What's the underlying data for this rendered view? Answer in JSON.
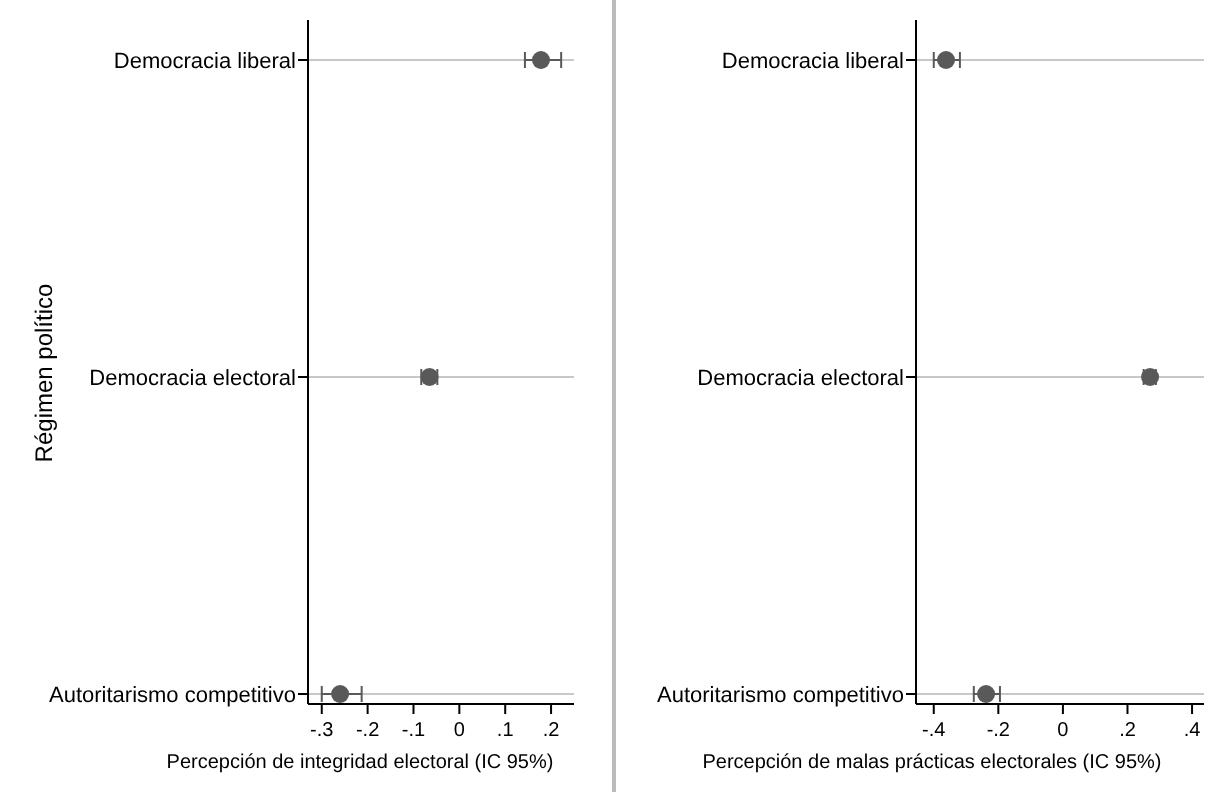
{
  "chart_data": [
    {
      "type": "scatter",
      "orientation": "horizontal",
      "ylabel": "Régimen político",
      "xlabel": "Percepción de integridad electoral (IC 95%)",
      "categories": [
        "Democracia liberal",
        "Democracia electoral",
        "Autoritarismo  competitivo"
      ],
      "values": [
        0.178,
        -0.065,
        -0.26
      ],
      "errors": [
        [
          0.143,
          0.222
        ],
        [
          -0.083,
          -0.048
        ],
        [
          -0.3,
          -0.213
        ]
      ],
      "color": "#595959",
      "marker": "circle",
      "grid": "y",
      "xlim": [
        -0.33,
        0.25
      ],
      "xticks": [
        {
          "value": -0.3,
          "label": "-.3"
        },
        {
          "value": -0.2,
          "label": "-.2"
        },
        {
          "value": -0.1,
          "label": "-.1"
        },
        0,
        {
          "value": 0.1,
          "label": ".1"
        },
        {
          "value": 0.2,
          "label": ".2"
        }
      ]
    },
    {
      "type": "scatter",
      "orientation": "horizontal",
      "xlabel": "Percepción de malas prácticas electorales (IC 95%)",
      "categories": [
        "Democracia liberal",
        "Democracia electoral",
        "Autoritarismo  competitivo"
      ],
      "values": [
        -0.362,
        0.27,
        -0.238
      ],
      "errors": [
        [
          -0.4,
          -0.319
        ],
        [
          0.25,
          0.288
        ],
        [
          -0.276,
          -0.195
        ]
      ],
      "color": "#595959",
      "marker": "circle",
      "grid": "y",
      "xlim": [
        -0.455,
        0.437
      ],
      "xticks": [
        {
          "value": -0.4,
          "label": "-.4"
        },
        {
          "value": -0.2,
          "label": "-.2"
        },
        0,
        {
          "value": 0.2,
          "label": ".2"
        },
        {
          "value": 0.4,
          "label": ".4"
        }
      ]
    }
  ]
}
